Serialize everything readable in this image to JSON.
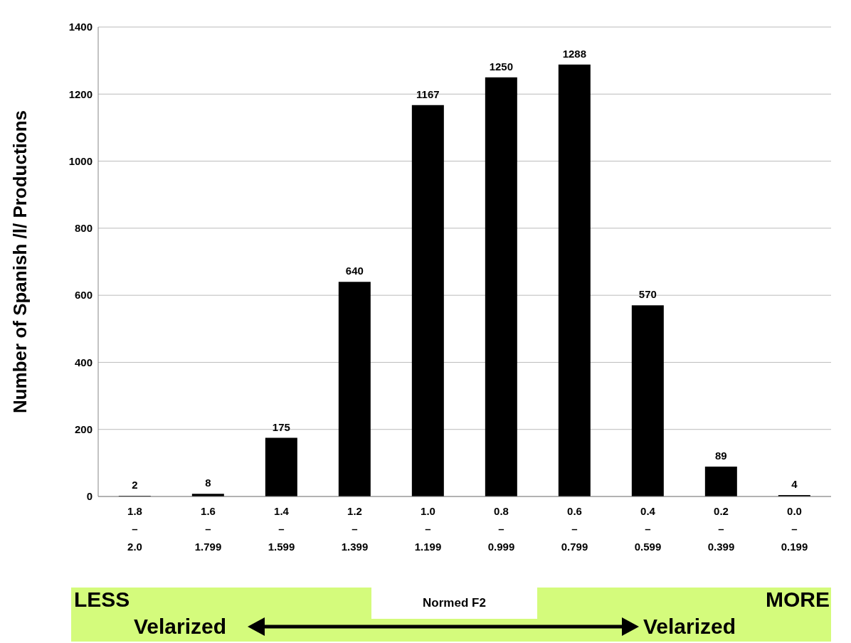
{
  "chart_data": {
    "type": "bar",
    "ylabel": "Number of Spanish /l/ Productions",
    "xlabel": "Normed F2",
    "categories": [
      "1.8\n–\n2.0",
      "1.6\n–\n1.799",
      "1.4\n–\n1.599",
      "1.2\n–\n1.399",
      "1.0\n–\n1.199",
      "0.8\n–\n0.999",
      "0.6\n–\n0.799",
      "0.4\n–\n0.599",
      "0.2\n–\n0.399",
      "0.0\n–\n0.199"
    ],
    "values": [
      2,
      8,
      175,
      640,
      1167,
      1250,
      1288,
      570,
      89,
      4
    ],
    "color": "#000000",
    "ylim": [
      0,
      1400
    ],
    "yticks": [
      0,
      200,
      400,
      600,
      800,
      1000,
      1200,
      1400
    ],
    "grid": "y",
    "data_labels": true,
    "annotations": [
      "LESS",
      "Velarized",
      "MORE",
      "Velarized"
    ]
  }
}
